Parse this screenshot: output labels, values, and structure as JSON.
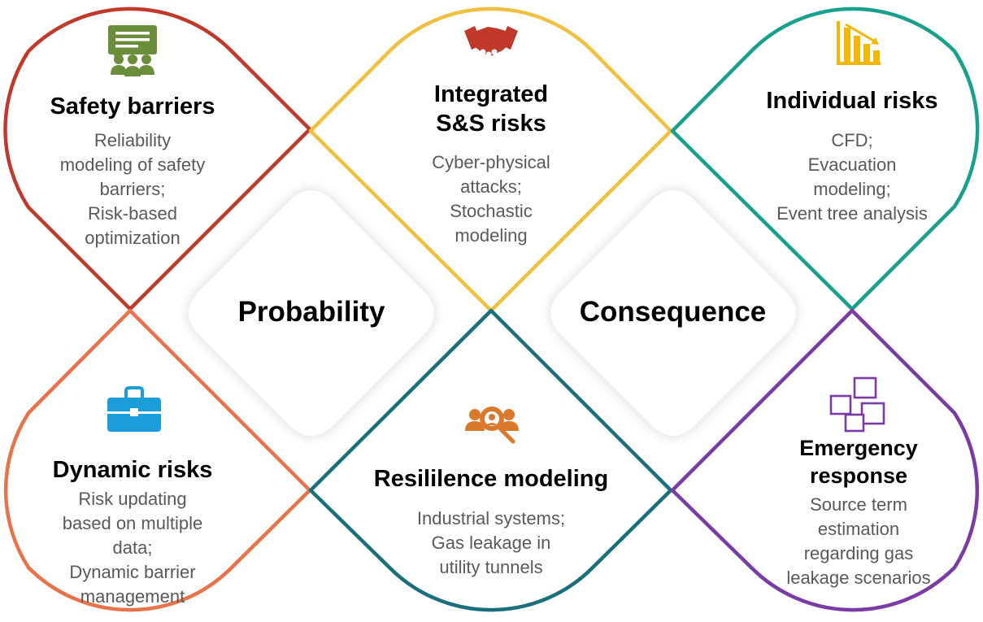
{
  "colors": {
    "safety": "#C0392B",
    "integrated": "#F0C040",
    "individual": "#17A08C",
    "dynamic": "#E8734A",
    "resilience": "#1B6F7C",
    "emergency": "#7B3BA5"
  },
  "center": {
    "probability": "Probability",
    "consequence": "Consequence"
  },
  "cells": {
    "safety_barriers": {
      "title": "Safety barriers",
      "desc": "Reliability\nmodeling of safety\nbarriers;\nRisk-based\noptimization",
      "icon": "meeting-presentation-icon"
    },
    "integrated_ss": {
      "title": "Integrated\nS&S risks",
      "desc": "Cyber-physical\nattacks;\nStochastic\nmodeling",
      "icon": "handshake-icon"
    },
    "individual_risks": {
      "title": "Individual risks",
      "desc": "CFD;\nEvacuation\nmodeling;\nEvent tree analysis",
      "icon": "bar-chart-decline-icon"
    },
    "dynamic_risks": {
      "title": "Dynamic risks",
      "desc": "Risk updating\nbased on multiple\ndata;\nDynamic barrier\nmanagement",
      "icon": "briefcase-icon"
    },
    "resilience": {
      "title": "Resililence modeling",
      "desc": "Industrial systems;\nGas leakage in\nutility tunnels",
      "icon": "people-search-icon"
    },
    "emergency": {
      "title": "Emergency\nresponse",
      "desc": "Source term\nestimation\nregarding gas\nleakage scenarios",
      "icon": "sticky-notes-icon"
    }
  }
}
